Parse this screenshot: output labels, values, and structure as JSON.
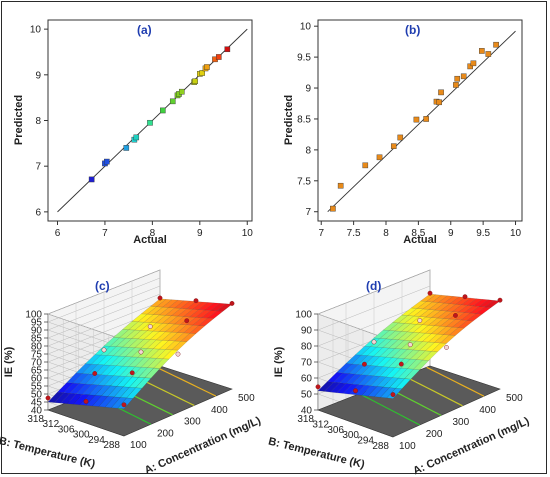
{
  "chart_data": [
    {
      "panel_label": "(a)",
      "type": "scatter",
      "xlabel": "Actual",
      "ylabel": "Predicted",
      "xlim": [
        5.8,
        10.1
      ],
      "ylim": [
        5.8,
        10.2
      ],
      "x_ticks": [
        "6",
        "7",
        "8",
        "9",
        "10"
      ],
      "y_ticks": [
        "6",
        "7",
        "8",
        "9",
        "10"
      ],
      "fit_line": [
        [
          6,
          6
        ],
        [
          10,
          10
        ]
      ],
      "points": [
        {
          "x": 6.72,
          "y": 6.71,
          "color": "#1f1fd0"
        },
        {
          "x": 7.0,
          "y": 7.06,
          "color": "#1f4fe0"
        },
        {
          "x": 7.04,
          "y": 7.1,
          "color": "#1f4fe0"
        },
        {
          "x": 7.45,
          "y": 7.4,
          "color": "#1f9fe0"
        },
        {
          "x": 7.62,
          "y": 7.58,
          "color": "#1fd0d0"
        },
        {
          "x": 7.66,
          "y": 7.63,
          "color": "#1fd0c0"
        },
        {
          "x": 7.95,
          "y": 7.95,
          "color": "#30e090"
        },
        {
          "x": 8.22,
          "y": 8.22,
          "color": "#40d040"
        },
        {
          "x": 8.43,
          "y": 8.42,
          "color": "#60d030"
        },
        {
          "x": 8.53,
          "y": 8.55,
          "color": "#80d020"
        },
        {
          "x": 8.56,
          "y": 8.58,
          "color": "#80d020"
        },
        {
          "x": 8.62,
          "y": 8.63,
          "color": "#90d020"
        },
        {
          "x": 8.88,
          "y": 8.84,
          "color": "#c0d010"
        },
        {
          "x": 8.9,
          "y": 8.86,
          "color": "#c8d010"
        },
        {
          "x": 9.0,
          "y": 9.02,
          "color": "#e0d010"
        },
        {
          "x": 9.05,
          "y": 9.04,
          "color": "#e0d010"
        },
        {
          "x": 9.12,
          "y": 9.14,
          "color": "#f0b010"
        },
        {
          "x": 9.15,
          "y": 9.17,
          "color": "#f0a010"
        },
        {
          "x": 9.32,
          "y": 9.34,
          "color": "#f06010"
        },
        {
          "x": 9.4,
          "y": 9.39,
          "color": "#f04010"
        },
        {
          "x": 9.58,
          "y": 9.56,
          "color": "#d01010"
        }
      ]
    },
    {
      "panel_label": "(b)",
      "type": "scatter",
      "xlabel": "Actual",
      "ylabel": "Predicted",
      "xlim": [
        6.95,
        10.1
      ],
      "ylim": [
        6.85,
        10.1
      ],
      "x_ticks": [
        "7",
        "7.5",
        "8",
        "8.5",
        "9",
        "9.5",
        "10"
      ],
      "y_ticks": [
        "7",
        "7.5",
        "8",
        "8.5",
        "9",
        "9.5",
        "10"
      ],
      "fit_line": [
        [
          7.1,
          7.0
        ],
        [
          10.0,
          9.92
        ]
      ],
      "points": [
        {
          "x": 7.18,
          "y": 7.05
        },
        {
          "x": 7.3,
          "y": 7.42
        },
        {
          "x": 7.68,
          "y": 7.75
        },
        {
          "x": 7.9,
          "y": 7.88
        },
        {
          "x": 8.12,
          "y": 8.06
        },
        {
          "x": 8.22,
          "y": 8.2
        },
        {
          "x": 8.47,
          "y": 8.49
        },
        {
          "x": 8.62,
          "y": 8.5
        },
        {
          "x": 8.78,
          "y": 8.78
        },
        {
          "x": 8.82,
          "y": 8.77
        },
        {
          "x": 8.85,
          "y": 8.93
        },
        {
          "x": 9.08,
          "y": 9.05
        },
        {
          "x": 9.1,
          "y": 9.15
        },
        {
          "x": 9.2,
          "y": 9.19
        },
        {
          "x": 9.3,
          "y": 9.35
        },
        {
          "x": 9.35,
          "y": 9.4
        },
        {
          "x": 9.48,
          "y": 9.6
        },
        {
          "x": 9.58,
          "y": 9.55
        },
        {
          "x": 9.7,
          "y": 9.7
        }
      ],
      "point_color": "#e88a1a"
    },
    {
      "panel_label": "(c)",
      "type": "surface3d",
      "zlabel": "IE (%)",
      "xlabel": "A: Concentration (mg/L)",
      "ylabel": "B: Temperature (K)",
      "z_ticks": [
        "40",
        "45",
        "50",
        "55",
        "60",
        "65",
        "70",
        "75",
        "80",
        "85",
        "90",
        "95",
        "100"
      ],
      "concentration_ticks": [
        "100",
        "200",
        "300",
        "400",
        "500"
      ],
      "temperature_ticks": [
        "288",
        "294",
        "300",
        "306",
        "312",
        "318"
      ],
      "corner_values": {
        "low_conc_high_temp": 45,
        "low_conc_low_temp": 57,
        "high_conc_high_temp": 82,
        "high_conc_low_temp": 93
      }
    },
    {
      "panel_label": "(d)",
      "type": "surface3d",
      "zlabel": "IE (%)",
      "xlabel": "A: Concentration (mg/L)",
      "ylabel": "B: Temperature (K)",
      "z_ticks": [
        "40",
        "50",
        "60",
        "70",
        "80",
        "90",
        "100"
      ],
      "concentration_ticks": [
        "100",
        "200",
        "300",
        "400",
        "500"
      ],
      "temperature_ticks": [
        "288",
        "294",
        "300",
        "306",
        "312",
        "318"
      ],
      "corner_values": {
        "low_conc_high_temp": 52,
        "low_conc_low_temp": 64,
        "high_conc_high_temp": 85,
        "high_conc_low_temp": 95
      }
    }
  ]
}
